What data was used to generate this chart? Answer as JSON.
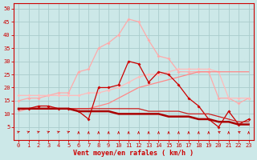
{
  "x": [
    0,
    1,
    2,
    3,
    4,
    5,
    6,
    7,
    8,
    9,
    10,
    11,
    12,
    13,
    14,
    15,
    16,
    17,
    18,
    19,
    20,
    21,
    22,
    23
  ],
  "line1_light": [
    15,
    16,
    16,
    17,
    18,
    18,
    26,
    27,
    35,
    37,
    40,
    46,
    45,
    38,
    32,
    31,
    26,
    26,
    26,
    26,
    16,
    16,
    14,
    16
  ],
  "line2_med": [
    17,
    17,
    17,
    17,
    17,
    17,
    17,
    18,
    18,
    19,
    20,
    22,
    24,
    25,
    25,
    26,
    27,
    27,
    27,
    27,
    26,
    16,
    16,
    16
  ],
  "line3_darkred": [
    12,
    12,
    13,
    13,
    12,
    12,
    11,
    8,
    20,
    20,
    21,
    30,
    29,
    22,
    26,
    25,
    21,
    16,
    13,
    8,
    5,
    11,
    6,
    8
  ],
  "line4_diag": [
    11,
    12,
    12,
    12,
    12,
    12,
    12,
    12,
    13,
    14,
    16,
    18,
    20,
    21,
    22,
    23,
    24,
    25,
    26,
    26,
    26,
    26,
    26,
    26
  ],
  "line5_decline": [
    12,
    12,
    12,
    12,
    12,
    12,
    12,
    12,
    12,
    12,
    12,
    12,
    12,
    11,
    11,
    11,
    11,
    10,
    10,
    10,
    9,
    8,
    7,
    7
  ],
  "line6_darkdecline": [
    12,
    12,
    12,
    12,
    12,
    12,
    11,
    11,
    11,
    11,
    10,
    10,
    10,
    10,
    10,
    9,
    9,
    9,
    8,
    8,
    7,
    7,
    6,
    6
  ],
  "color_lightpink": "#ffaaaa",
  "color_medpink": "#ffbbbb",
  "color_darkred": "#cc0000",
  "color_medred": "#ff8888",
  "color_darkdecline": "#aa0000",
  "color_thinline": "#cc2222",
  "bg_color": "#cce8e8",
  "grid_color": "#aacccc",
  "axis_color": "#cc0000",
  "xlabel": "Vent moyen/en rafales ( km/h )",
  "yticks": [
    5,
    10,
    15,
    20,
    25,
    30,
    35,
    40,
    45,
    50
  ],
  "xticks": [
    0,
    1,
    2,
    3,
    4,
    5,
    6,
    7,
    8,
    9,
    10,
    11,
    12,
    13,
    14,
    15,
    16,
    17,
    18,
    19,
    20,
    21,
    22,
    23
  ],
  "arrow_angles": [
    45,
    45,
    45,
    45,
    45,
    45,
    0,
    0,
    0,
    0,
    0,
    0,
    0,
    0,
    0,
    0,
    0,
    0,
    0,
    0,
    330,
    0,
    330,
    0
  ]
}
